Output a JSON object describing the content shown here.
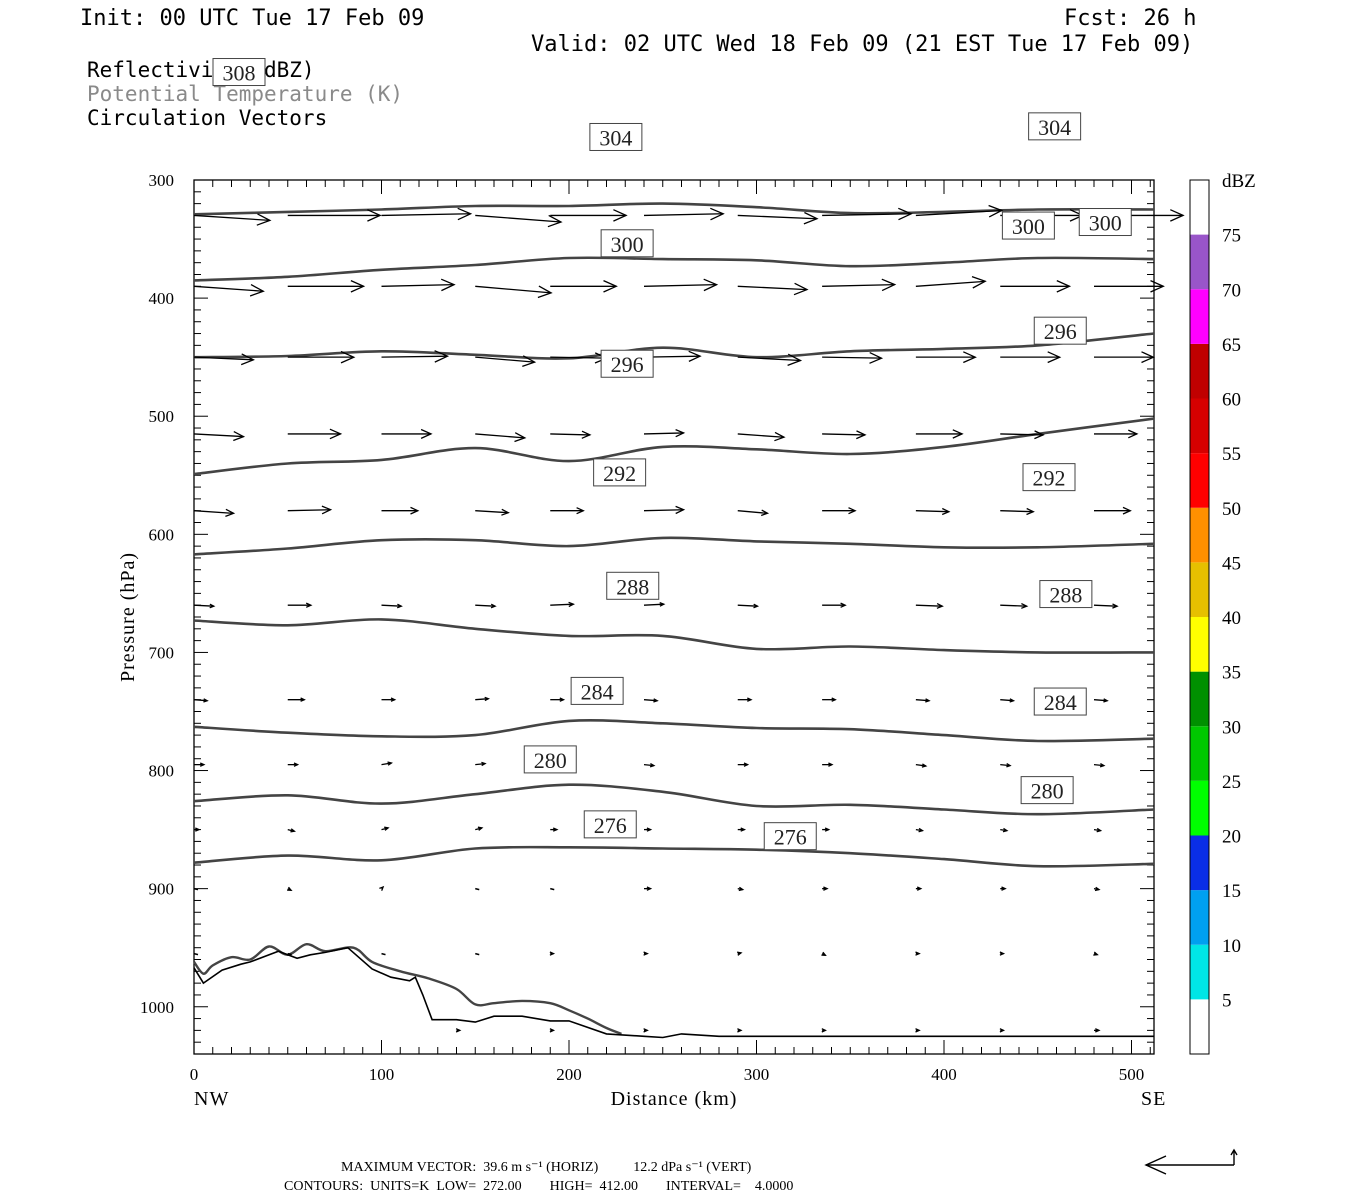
{
  "header": {
    "init": "Init: 00 UTC Tue 17 Feb 09",
    "fcst": "Fcst:   26 h",
    "valid": "Valid: 02 UTC Wed 18 Feb 09 (21 EST Tue 17 Feb 09)"
  },
  "legend": {
    "reflectivity": "Reflectivity (dBZ)",
    "theta": "Potential Temperature (K)",
    "vectors": "Circulation Vectors"
  },
  "colors": {
    "theta_text": "#8a8a8a",
    "contour": "#444444"
  },
  "chart_data": {
    "type": "contour-cross-section",
    "xlabel": "Distance (km)",
    "ylabel": "Pressure (hPa)",
    "xlim": [
      0,
      512
    ],
    "ylim": [
      1040,
      300
    ],
    "x_ticks": [
      "0",
      "100",
      "200",
      "300",
      "400",
      "500"
    ],
    "y_ticks": [
      "300",
      "400",
      "500",
      "600",
      "700",
      "800",
      "900",
      "1000"
    ],
    "x_end_labels": {
      "left": "NW",
      "right": "SE"
    },
    "theta_contours": [
      {
        "value": 276,
        "pts": [
          [
            0,
            878
          ],
          [
            50,
            872
          ],
          [
            100,
            876
          ],
          [
            150,
            866
          ],
          [
            200,
            865
          ],
          [
            250,
            866
          ],
          [
            300,
            867
          ],
          [
            350,
            870
          ],
          [
            400,
            875
          ],
          [
            450,
            881
          ],
          [
            512,
            879
          ]
        ],
        "labels": [
          [
            "276",
            222,
            846
          ],
          [
            "276",
            318,
            856
          ]
        ]
      },
      {
        "value": 280,
        "pts": [
          [
            0,
            826
          ],
          [
            50,
            821
          ],
          [
            100,
            828
          ],
          [
            150,
            820
          ],
          [
            200,
            812
          ],
          [
            250,
            818
          ],
          [
            300,
            830
          ],
          [
            350,
            829
          ],
          [
            400,
            833
          ],
          [
            450,
            837
          ],
          [
            512,
            833
          ]
        ],
        "labels": [
          [
            "280",
            190,
            791
          ],
          [
            "280",
            455,
            817
          ]
        ]
      },
      {
        "value": 284,
        "pts": [
          [
            0,
            763
          ],
          [
            50,
            768
          ],
          [
            100,
            771
          ],
          [
            150,
            770
          ],
          [
            200,
            758
          ],
          [
            250,
            760
          ],
          [
            300,
            764
          ],
          [
            350,
            765
          ],
          [
            400,
            770
          ],
          [
            450,
            775
          ],
          [
            512,
            773
          ]
        ],
        "labels": [
          [
            "284",
            215,
            733
          ],
          [
            "284",
            462,
            742
          ]
        ]
      },
      {
        "value": 288,
        "pts": [
          [
            0,
            673
          ],
          [
            50,
            677
          ],
          [
            100,
            672
          ],
          [
            150,
            680
          ],
          [
            200,
            686
          ],
          [
            250,
            686
          ],
          [
            300,
            697
          ],
          [
            350,
            695
          ],
          [
            400,
            698
          ],
          [
            450,
            700
          ],
          [
            512,
            700
          ]
        ],
        "labels": [
          [
            "288",
            234,
            644
          ],
          [
            "288",
            465,
            651
          ]
        ]
      },
      {
        "value": 292,
        "pts": [
          [
            0,
            617
          ],
          [
            50,
            612
          ],
          [
            100,
            605
          ],
          [
            150,
            605
          ],
          [
            200,
            610
          ],
          [
            250,
            603
          ],
          [
            300,
            606
          ],
          [
            350,
            608
          ],
          [
            400,
            611
          ],
          [
            450,
            611
          ],
          [
            512,
            608
          ]
        ],
        "labels": [
          [
            "292",
            227,
            548
          ],
          [
            "292",
            456,
            552
          ]
        ]
      },
      {
        "value": 296,
        "pts": [
          [
            0,
            549
          ],
          [
            50,
            540
          ],
          [
            100,
            537
          ],
          [
            150,
            527
          ],
          [
            200,
            538
          ],
          [
            250,
            526
          ],
          [
            300,
            528
          ],
          [
            350,
            532
          ],
          [
            400,
            526
          ],
          [
            450,
            515
          ],
          [
            512,
            502
          ]
        ],
        "labels": [
          [
            "296",
            231,
            456
          ],
          [
            "296",
            462,
            428
          ]
        ]
      },
      {
        "value": 300,
        "pts": [
          [
            0,
            450
          ],
          [
            50,
            449
          ],
          [
            100,
            445
          ],
          [
            150,
            448
          ],
          [
            200,
            451
          ],
          [
            250,
            442
          ],
          [
            300,
            450
          ],
          [
            350,
            445
          ],
          [
            400,
            443
          ],
          [
            450,
            440
          ],
          [
            512,
            430
          ]
        ],
        "labels": [
          [
            "300",
            231,
            354
          ],
          [
            "300",
            445,
            339
          ],
          [
            "300",
            486,
            336
          ]
        ]
      },
      {
        "value": 304,
        "pts": [
          [
            0,
            385
          ],
          [
            50,
            382
          ],
          [
            100,
            376
          ],
          [
            150,
            372
          ],
          [
            200,
            366
          ],
          [
            250,
            367
          ],
          [
            300,
            368
          ],
          [
            350,
            373
          ],
          [
            400,
            370
          ],
          [
            450,
            366
          ],
          [
            512,
            367
          ]
        ],
        "labels": [
          [
            "304",
            225,
            264
          ],
          [
            "304",
            459,
            255
          ]
        ]
      },
      {
        "value": 308,
        "pts": [
          [
            0,
            329
          ],
          [
            50,
            327
          ],
          [
            100,
            325
          ],
          [
            150,
            322
          ],
          [
            200,
            322
          ],
          [
            250,
            320
          ],
          [
            300,
            323
          ],
          [
            350,
            328
          ],
          [
            400,
            327
          ],
          [
            450,
            325
          ],
          [
            512,
            325
          ]
        ],
        "labels": [
          [
            "308",
            24,
            209
          ]
        ]
      }
    ],
    "terrain_upper": [
      [
        0,
        962
      ],
      [
        5,
        972
      ],
      [
        10,
        965
      ],
      [
        20,
        958
      ],
      [
        30,
        960
      ],
      [
        40,
        949
      ],
      [
        50,
        956
      ],
      [
        60,
        947
      ],
      [
        70,
        953
      ],
      [
        85,
        950
      ],
      [
        95,
        962
      ],
      [
        110,
        970
      ],
      [
        125,
        976
      ],
      [
        140,
        985
      ],
      [
        150,
        998
      ],
      [
        160,
        997
      ],
      [
        175,
        995
      ],
      [
        190,
        997
      ],
      [
        200,
        1003
      ],
      [
        210,
        1010
      ],
      [
        220,
        1018
      ],
      [
        228,
        1023
      ]
    ],
    "terrain_lower": [
      [
        0,
        967
      ],
      [
        5,
        980
      ],
      [
        15,
        969
      ],
      [
        25,
        964
      ],
      [
        30,
        962
      ],
      [
        45,
        953
      ],
      [
        55,
        959
      ],
      [
        62,
        956
      ],
      [
        70,
        954
      ],
      [
        82,
        950
      ],
      [
        95,
        968
      ],
      [
        105,
        975
      ],
      [
        115,
        978
      ],
      [
        118,
        975
      ],
      [
        122,
        990
      ],
      [
        127,
        1011
      ],
      [
        140,
        1011
      ],
      [
        150,
        1013
      ],
      [
        160,
        1008
      ],
      [
        175,
        1008
      ],
      [
        190,
        1012
      ],
      [
        200,
        1012
      ],
      [
        220,
        1023
      ],
      [
        240,
        1025
      ],
      [
        250,
        1026
      ],
      [
        260,
        1023
      ],
      [
        280,
        1025
      ],
      [
        512,
        1025
      ]
    ],
    "vectors": [
      {
        "p": 330,
        "x": [
          0,
          50,
          100,
          150,
          190,
          240,
          290,
          335,
          385,
          430,
          480
        ],
        "u": [
          23,
          28,
          27,
          26,
          23,
          24,
          24,
          27,
          26,
          25,
          27
        ],
        "w": [
          1.5,
          0,
          -0.5,
          2,
          0,
          -0.5,
          1,
          -0.5,
          -1.5,
          0,
          0
        ]
      },
      {
        "p": 390,
        "x": [
          0,
          50,
          100,
          150,
          190,
          240,
          290,
          335,
          385,
          430,
          480
        ],
        "u": [
          21,
          23,
          22,
          23,
          20,
          22,
          21,
          22,
          21,
          21,
          21
        ],
        "w": [
          1.5,
          0,
          -0.5,
          2,
          0,
          -0.5,
          1,
          -0.5,
          -1.5,
          0,
          0
        ]
      },
      {
        "p": 450,
        "x": [
          0,
          50,
          100,
          150,
          190,
          240,
          290,
          335,
          385,
          430,
          480
        ],
        "u": [
          18,
          20,
          20,
          18,
          17,
          17,
          19,
          18,
          18,
          18,
          18
        ],
        "w": [
          0.8,
          0,
          -0.3,
          1.5,
          0.3,
          -0.3,
          1,
          0.3,
          0,
          0,
          0
        ]
      },
      {
        "p": 515,
        "x": [
          0,
          50,
          100,
          150,
          190,
          240,
          290,
          335,
          385,
          430,
          480
        ],
        "u": [
          15,
          16,
          15,
          15,
          12,
          12,
          14,
          13,
          14,
          13,
          13
        ],
        "w": [
          0.8,
          0,
          0,
          1.2,
          0.3,
          -0.3,
          1,
          0.3,
          0,
          0.3,
          0
        ]
      },
      {
        "p": 580,
        "x": [
          0,
          50,
          100,
          150,
          190,
          240,
          290,
          335,
          385,
          430,
          480
        ],
        "u": [
          12,
          13,
          11,
          10,
          10,
          12,
          9,
          10,
          10,
          10,
          11
        ],
        "w": [
          0.8,
          -0.3,
          0,
          0.6,
          0,
          -0.3,
          0.8,
          0,
          0.3,
          0.3,
          0
        ]
      },
      {
        "p": 660,
        "x": [
          0,
          50,
          100,
          150,
          190,
          240,
          290,
          335,
          385,
          430,
          480
        ],
        "u": [
          6,
          7,
          6,
          6,
          7,
          6,
          6,
          7,
          8,
          8,
          7
        ],
        "w": [
          0.3,
          0,
          0.3,
          0.3,
          -0.3,
          -0.3,
          0.3,
          0,
          0.3,
          0.3,
          0.3
        ]
      },
      {
        "p": 740,
        "x": [
          0,
          50,
          100,
          150,
          190,
          240,
          290,
          335,
          385,
          430,
          480
        ],
        "u": [
          4,
          5,
          4,
          4,
          4,
          4,
          4,
          4,
          4,
          4,
          4
        ],
        "w": [
          0.3,
          0,
          0,
          -0.3,
          0,
          0.3,
          0,
          0,
          0.3,
          0.3,
          0.3
        ]
      },
      {
        "p": 795,
        "x": [
          0,
          50,
          100,
          150,
          190,
          240,
          290,
          335,
          385,
          430,
          480
        ],
        "u": [
          3,
          3,
          3,
          3,
          3,
          3,
          3,
          3,
          3,
          3,
          3
        ],
        "w": [
          0,
          0,
          -0.5,
          -0.3,
          0,
          0.3,
          0,
          0,
          0.4,
          0.3,
          0.3
        ]
      },
      {
        "p": 850,
        "x": [
          0,
          50,
          100,
          150,
          190,
          240,
          290,
          335,
          385,
          430,
          480
        ],
        "u": [
          1.5,
          2,
          2,
          2,
          2,
          2,
          2,
          2,
          2,
          2,
          2
        ],
        "w": [
          0,
          0.5,
          -0.5,
          -0.5,
          0,
          0,
          0,
          0,
          0.3,
          0.3,
          0.3
        ]
      },
      {
        "p": 900,
        "x": [
          0,
          50,
          100,
          150,
          190,
          240,
          290,
          335,
          385,
          430,
          480
        ],
        "u": [
          0.5,
          1,
          0.5,
          0.3,
          0.5,
          2,
          1.5,
          1.5,
          1.5,
          1.5,
          1.5
        ],
        "w": [
          0,
          0.5,
          -0.5,
          0,
          0,
          0,
          0.3,
          0,
          0,
          0,
          0.3
        ]
      },
      {
        "p": 955,
        "x": [
          0,
          50,
          100,
          150,
          190,
          240,
          290,
          335,
          385,
          430,
          480
        ],
        "u": [
          0,
          0,
          0,
          0,
          1,
          1,
          1,
          1,
          1,
          1,
          1
        ],
        "w": [
          0,
          0,
          0,
          0.5,
          0,
          0,
          -0.2,
          0.5,
          0,
          0,
          0.3
        ]
      },
      {
        "p": 1020,
        "x": [
          140,
          190,
          240,
          290,
          335,
          385,
          430,
          480
        ],
        "u": [
          1,
          1,
          1,
          1,
          1,
          1,
          1,
          1.5
        ],
        "w": [
          0,
          0,
          0,
          0,
          0,
          0,
          0,
          0
        ]
      }
    ]
  },
  "colorbar": {
    "title": "dBZ",
    "colors": [
      "#00e6e6",
      "#00a0f0",
      "#0a2ee6",
      "#00ff00",
      "#00c800",
      "#009000",
      "#ffff00",
      "#e6c000",
      "#ff9000",
      "#ff0000",
      "#d60000",
      "#c00000",
      "#ff00ff",
      "#9955c9"
    ],
    "labels": [
      "5",
      "10",
      "15",
      "20",
      "25",
      "30",
      "35",
      "40",
      "45",
      "50",
      "55",
      "60",
      "65",
      "70",
      "75"
    ]
  },
  "footer": {
    "max_vector": "MAXIMUM VECTOR:  39.6 m s⁻¹ (HORIZ)          12.2 dPa s⁻¹ (VERT)",
    "contours": "CONTOURS:  UNITS=K  LOW=  272.00        HIGH=  412.00        INTERVAL=    4.0000"
  }
}
